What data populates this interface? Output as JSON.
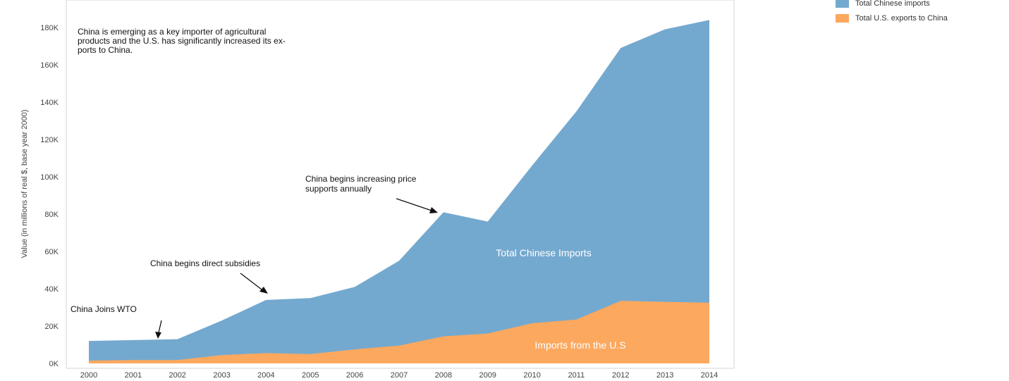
{
  "chart_data": {
    "type": "area",
    "categories": [
      "2000",
      "2001",
      "2002",
      "2003",
      "2004",
      "2005",
      "2006",
      "2007",
      "2008",
      "2009",
      "2010",
      "2011",
      "2012",
      "2013",
      "2014"
    ],
    "series": [
      {
        "name": "Total Chinese imports",
        "color": "#74a9cf",
        "values": [
          12000,
          12500,
          13000,
          23000,
          34000,
          35000,
          41000,
          55000,
          81000,
          76000,
          106000,
          135000,
          169000,
          179000,
          184000
        ]
      },
      {
        "name": "Total U.S. exports to China",
        "color": "#fca85e",
        "values": [
          1500,
          1800,
          1800,
          4500,
          5500,
          5000,
          7500,
          9500,
          14500,
          16000,
          21500,
          23500,
          33500,
          33000,
          32500
        ]
      }
    ],
    "ylabel": "Value (in millions of real $, base year 2000)",
    "xlabel": "",
    "ylim": [
      0,
      185000
    ],
    "yticks": [
      "0K",
      "20K",
      "40K",
      "60K",
      "80K",
      "100K",
      "120K",
      "140K",
      "160K",
      "180K"
    ],
    "grid": false,
    "legend_position": "top-right",
    "area_labels": {
      "imports": "Total Chinese Imports",
      "exports": "Imports from the U.S"
    },
    "annotations": {
      "intro": [
        "China is emerging as a key importer of agricultural",
        "products and the U.S. has significantly increased its ex-",
        "ports to China."
      ],
      "wto": "China Joins WTO",
      "subsidies": "China begins direct subsidies",
      "price": [
        "China begins increasing price",
        "supports annually"
      ]
    }
  }
}
